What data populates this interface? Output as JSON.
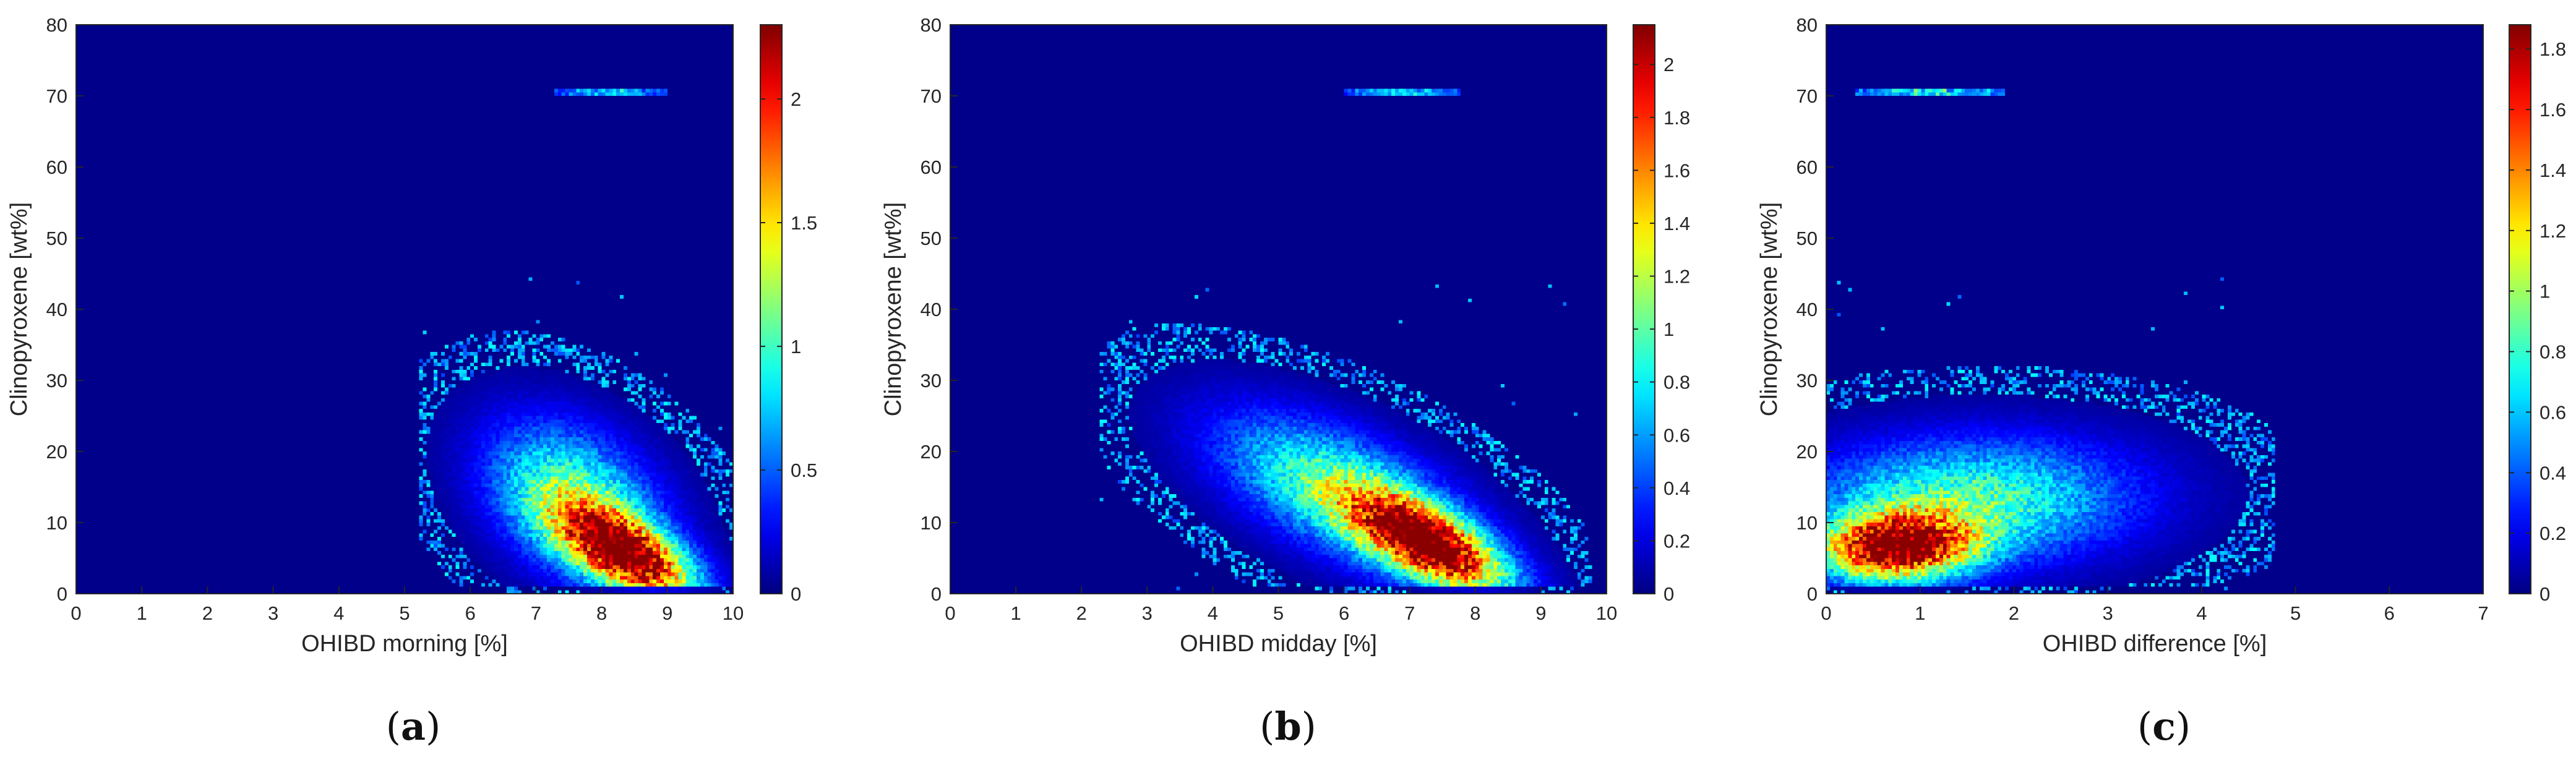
{
  "chart_data": [
    {
      "type": "heatmap",
      "panel_label": "a",
      "xlabel": "OHIBD morning [%]",
      "ylabel": "Clinopyroxene [wt%]",
      "xlim": [
        0,
        10
      ],
      "ylim": [
        0,
        80
      ],
      "x_ticks": [
        0,
        1,
        2,
        3,
        4,
        5,
        6,
        7,
        8,
        9,
        10
      ],
      "y_ticks": [
        0,
        10,
        20,
        30,
        40,
        50,
        60,
        70,
        80
      ],
      "colorbar": {
        "min": 0,
        "max": 2.3,
        "ticks": [
          0,
          0.5,
          1,
          1.5,
          2
        ],
        "colormap": "jet"
      },
      "background_color": "#000080",
      "density_clusters": [
        {
          "center_x": 8.4,
          "center_y": 5.5,
          "spread_x": 0.7,
          "spread_y": 3.5,
          "peak": 2.3,
          "tilt": -4
        },
        {
          "center_x": 7.6,
          "center_y": 13,
          "spread_x": 0.9,
          "spread_y": 7,
          "peak": 1.1,
          "tilt": -3
        }
      ],
      "horizontal_band": {
        "y": 70.5,
        "x_start": 7.3,
        "x_end": 9.0,
        "peak": 0.9
      },
      "x_range_of_data": [
        5.2,
        10
      ]
    },
    {
      "type": "heatmap",
      "panel_label": "b",
      "xlabel": "OHIBD midday [%]",
      "ylabel": "Clinopyroxene [wt%]",
      "xlim": [
        0,
        10
      ],
      "ylim": [
        0,
        80
      ],
      "x_ticks": [
        0,
        1,
        2,
        3,
        4,
        5,
        6,
        7,
        8,
        9,
        10
      ],
      "y_ticks": [
        0,
        10,
        20,
        30,
        40,
        50,
        60,
        70,
        80
      ],
      "colorbar": {
        "min": 0,
        "max": 2.15,
        "ticks": [
          0,
          0.2,
          0.4,
          0.6,
          0.8,
          1,
          1.2,
          1.4,
          1.6,
          1.8,
          2
        ],
        "colormap": "jet"
      },
      "background_color": "#000080",
      "density_clusters": [
        {
          "center_x": 7.3,
          "center_y": 7,
          "spread_x": 0.8,
          "spread_y": 3.5,
          "peak": 2.15,
          "tilt": -4
        },
        {
          "center_x": 6.0,
          "center_y": 14,
          "spread_x": 1.3,
          "spread_y": 6,
          "peak": 1.0,
          "tilt": -3.5
        }
      ],
      "horizontal_band": {
        "y": 70.5,
        "x_start": 6.0,
        "x_end": 7.8,
        "peak": 0.9
      },
      "x_range_of_data": [
        2.3,
        9.8
      ]
    },
    {
      "type": "heatmap",
      "panel_label": "c",
      "xlabel": "OHIBD difference [%]",
      "ylabel": "Clinopyroxene [wt%]",
      "xlim": [
        0,
        7
      ],
      "ylim": [
        0,
        80
      ],
      "x_ticks": [
        0,
        1,
        2,
        3,
        4,
        5,
        6,
        7
      ],
      "y_ticks": [
        0,
        10,
        20,
        30,
        40,
        50,
        60,
        70,
        80
      ],
      "colorbar": {
        "min": 0,
        "max": 1.88,
        "ticks": [
          0,
          0.2,
          0.4,
          0.6,
          0.8,
          1,
          1.2,
          1.4,
          1.6,
          1.8
        ],
        "colormap": "jet"
      },
      "background_color": "#000080",
      "density_clusters": [
        {
          "center_x": 0.75,
          "center_y": 6.5,
          "spread_x": 0.55,
          "spread_y": 3.2,
          "peak": 1.88,
          "tilt": 0.5
        },
        {
          "center_x": 1.5,
          "center_y": 13,
          "spread_x": 1.2,
          "spread_y": 6,
          "peak": 0.85,
          "tilt": 0.3
        }
      ],
      "horizontal_band": {
        "y": 70.5,
        "x_start": 0.3,
        "x_end": 1.9,
        "peak": 0.9
      },
      "x_range_of_data": [
        0,
        4.8
      ]
    }
  ]
}
